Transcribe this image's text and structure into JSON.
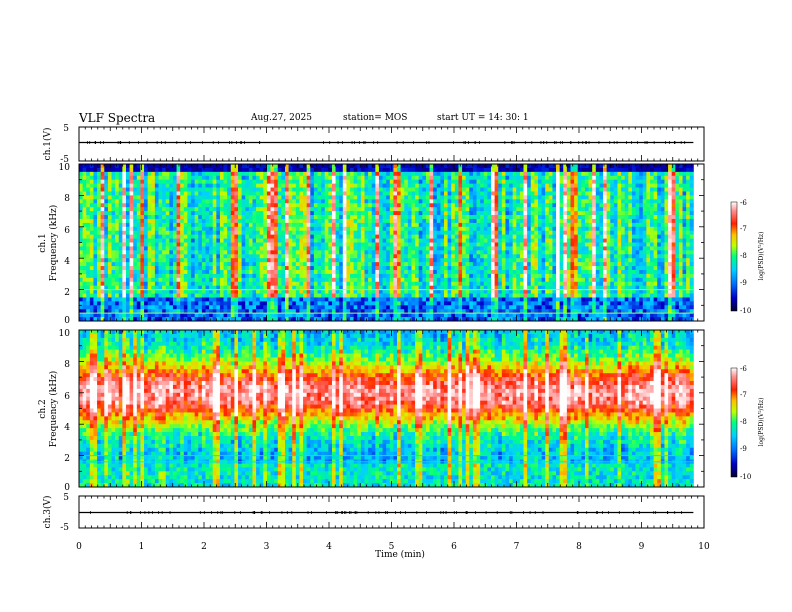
{
  "header": {
    "title": "VLF Spectra",
    "date": "Aug.27, 2025",
    "station": "station= MOS",
    "start_ut": "start  UT =   14: 30: 1"
  },
  "chart_data": [
    {
      "type": "line",
      "name": "ch1-voltage",
      "ylabel": "ch.1(V)",
      "ylim": [
        -5,
        5
      ],
      "yticks": [
        "5",
        "-5"
      ],
      "value": 0
    },
    {
      "type": "heatmap",
      "name": "ch1-spectrogram",
      "ylabel": "ch.1\nFrequency (kHz)",
      "ylim": [
        0,
        10
      ],
      "yticks": [
        "0",
        "2",
        "4",
        "6",
        "8",
        "10"
      ],
      "xlim": [
        0,
        9.83
      ],
      "band_kHz": {
        "low": 1.6,
        "high": 9.5
      },
      "line_kHz": [
        0.5,
        2.0
      ],
      "colorbar": {
        "label": "log(PSD)(V²/Hz)",
        "range": [
          -10,
          -6
        ],
        "ticks": [
          "-6",
          "-7",
          "-8",
          "-9",
          "-10"
        ]
      }
    },
    {
      "type": "heatmap",
      "name": "ch2-spectrogram",
      "ylabel": "ch.2\nFrequency (kHz)",
      "ylim": [
        0,
        10
      ],
      "yticks": [
        "0",
        "2",
        "4",
        "6",
        "8",
        "10"
      ],
      "xlim": [
        0,
        9.83
      ],
      "peak_band_kHz": [
        4,
        8
      ],
      "line_kHz": [
        1.6,
        2.0
      ],
      "colorbar": {
        "label": "log(PSD)(V²/Hz)",
        "range": [
          -10,
          -6
        ],
        "ticks": [
          "-6",
          "-7",
          "-8",
          "-9",
          "-10"
        ]
      }
    },
    {
      "type": "line",
      "name": "ch3-voltage",
      "ylabel": "ch.3(V)",
      "ylim": [
        -5,
        5
      ],
      "yticks": [
        "5",
        "-5"
      ],
      "value": 0
    }
  ],
  "xaxis": {
    "label": "Time  (min)",
    "range": [
      0,
      10
    ],
    "ticks": [
      "0",
      "1",
      "2",
      "3",
      "4",
      "5",
      "6",
      "7",
      "8",
      "9",
      "10"
    ]
  },
  "colors": {
    "background": "#ffffff",
    "axis": "#000000",
    "colormap": [
      "#1a0030",
      "#0000c8",
      "#0070ff",
      "#00d0ff",
      "#00ff80",
      "#c0ff00",
      "#ffc000",
      "#ff2000",
      "#ff9090",
      "#ffffff"
    ]
  }
}
